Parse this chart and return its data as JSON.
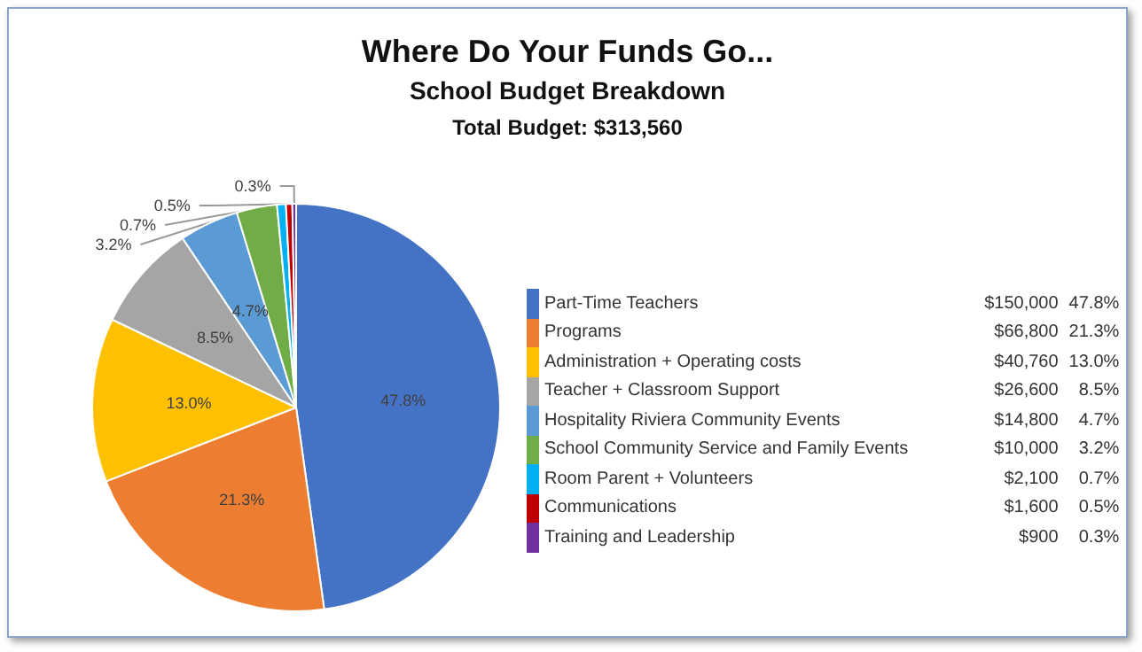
{
  "chart_data": {
    "type": "pie",
    "title": "Where Do Your Funds Go...",
    "subtitle": "School Budget Breakdown",
    "annotations": [
      "Total Budget: $313,560",
      "$150,000",
      "$66,800",
      "$40,760",
      "$26,600",
      "$14,800",
      "$10,000",
      "$2,100",
      "$1,600",
      "$900"
    ],
    "categories": [
      "Part-Time Teachers",
      "Programs",
      "Administration + Operating costs",
      "Teacher + Classroom Support",
      "Hospitality Riviera Community Events",
      "School Community Service and Family Events",
      "Room Parent + Volunteers",
      "Communications",
      "Training and Leadership"
    ],
    "values": [
      47.8,
      21.3,
      13.0,
      8.5,
      4.7,
      3.2,
      0.7,
      0.5,
      0.3
    ],
    "value_labels": [
      "47.8%",
      "21.3%",
      "13.0%",
      "8.5%",
      "4.7%",
      "3.2%",
      "0.7%",
      "0.5%",
      "0.3%"
    ],
    "colors": [
      "#4472c4",
      "#ed7d31",
      "#ffc000",
      "#a5a5a5",
      "#5b9bd5",
      "#70ad47",
      "#00b0f0",
      "#c00000",
      "#7030a0"
    ],
    "legend": "right"
  }
}
